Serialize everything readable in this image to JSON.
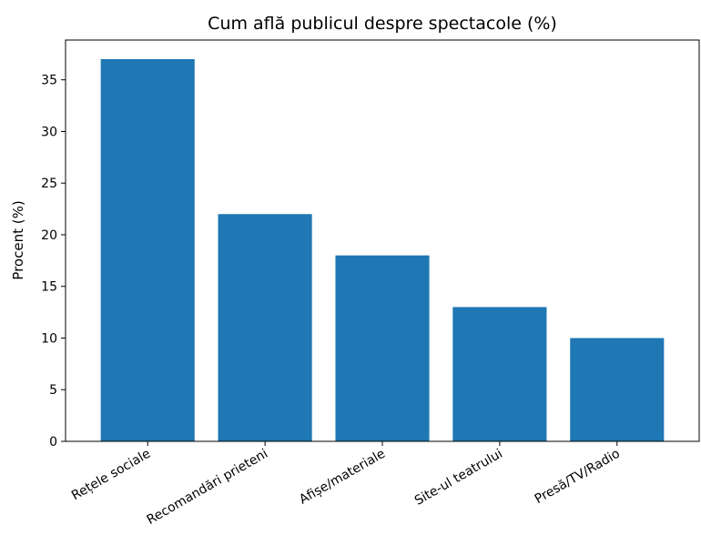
{
  "chart_data": {
    "type": "bar",
    "title": "Cum află publicul despre spectacole (%)",
    "xlabel": "",
    "ylabel": "Procent (%)",
    "categories": [
      "Rețele sociale",
      "Recomandări prieteni",
      "Afișe/materiale",
      "Site-ul teatrului",
      "Presă/TV/Radio"
    ],
    "values": [
      37,
      22,
      18,
      13,
      10
    ],
    "ylim": [
      0,
      38.85
    ],
    "yticks": [
      0,
      5,
      10,
      15,
      20,
      25,
      30,
      35
    ],
    "grid": false,
    "bar_color": "#1f77b4"
  }
}
